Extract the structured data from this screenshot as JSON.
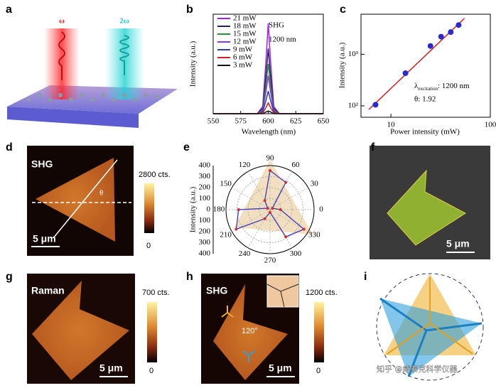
{
  "panel_labels": [
    "a",
    "b",
    "c",
    "d",
    "e",
    "f",
    "g",
    "h",
    "i"
  ],
  "panel_a": {
    "beam_1": "ω",
    "beam_2": "2ω"
  },
  "chart_data": [
    {
      "type": "line",
      "x_label": "Wavelength (nm)",
      "y_label": "Intensity (a.u.)",
      "annotations": [
        "SHG",
        "1200 nm"
      ],
      "x": [
        550,
        590,
        595,
        598,
        600,
        602,
        605,
        610,
        650
      ],
      "series": [
        {
          "name": "21 mW",
          "color": "#a020f0",
          "values": [
            0,
            0,
            0.08,
            0.6,
            1.0,
            0.6,
            0.08,
            0,
            0
          ]
        },
        {
          "name": "18 mW",
          "color": "#23235e",
          "values": [
            0,
            0,
            0.06,
            0.43,
            0.72,
            0.43,
            0.06,
            0,
            0
          ]
        },
        {
          "name": "15 mW",
          "color": "#2e8b3a",
          "values": [
            0,
            0,
            0.04,
            0.33,
            0.55,
            0.33,
            0.04,
            0,
            0
          ]
        },
        {
          "name": "12 mW",
          "color": "#8a3cc8",
          "values": [
            0,
            0,
            0.03,
            0.25,
            0.42,
            0.25,
            0.03,
            0,
            0
          ]
        },
        {
          "name": "9 mW",
          "color": "#2a3cc0",
          "values": [
            0,
            0,
            0.02,
            0.15,
            0.25,
            0.15,
            0.02,
            0,
            0
          ]
        },
        {
          "name": "6 mW",
          "color": "#d02020",
          "values": [
            0,
            0,
            0.01,
            0.07,
            0.12,
            0.07,
            0.01,
            0,
            0
          ]
        },
        {
          "name": "3 mW",
          "color": "#111111",
          "values": [
            0,
            0,
            0,
            0.02,
            0.03,
            0.02,
            0,
            0,
            0
          ]
        }
      ],
      "xlim": [
        550,
        650
      ],
      "xticks": [
        550,
        575,
        600,
        625,
        650
      ],
      "ylim": [
        0,
        1.1
      ]
    },
    {
      "type": "scatter",
      "x_label": "Power intensity (mW)",
      "y_label": "Intensity (a.u.)",
      "annotation_symbol": "λ",
      "annotation_sub": "excitation",
      "annotation_value": ":  1200 nm",
      "annotation_theta": "θ:  1.92",
      "x": [
        7,
        14,
        25,
        32,
        40,
        48
      ],
      "values": [
        105,
        430,
        1450,
        2200,
        2700,
        3700
      ],
      "color": "#2a2ad0",
      "fit_x": [
        6,
        55
      ],
      "fit_values": [
        85,
        5000
      ],
      "fit_color": "#d42020",
      "xlog": true,
      "ylog": true,
      "xlim": [
        5,
        100
      ],
      "xticks": [
        10,
        100
      ],
      "ylim": [
        60,
        6000
      ],
      "yticks": [
        {
          "value": 100,
          "label": "10²"
        },
        {
          "value": 1000,
          "label": "10³"
        }
      ]
    },
    {
      "type": "polar",
      "y_label": "Intensity (a.u.)",
      "angles": [
        0,
        30,
        60,
        90,
        120,
        150,
        180,
        210,
        240,
        270,
        300,
        330
      ],
      "values": [
        95,
        25,
        285,
        355,
        95,
        25,
        285,
        355,
        95,
        25,
        285,
        355
      ],
      "color": "#3a3ac0",
      "dot_color": "#d03030",
      "angle_ticks": [
        0,
        30,
        60,
        90,
        120,
        150,
        180,
        210,
        240,
        270,
        300,
        330
      ],
      "rlim": [
        0,
        400
      ],
      "rticks": [
        0,
        100,
        200,
        300,
        400
      ]
    }
  ],
  "panel_d": {
    "label": "SHG",
    "cbar_max": "2800 cts.",
    "cbar_min": "0",
    "scale": "5 μm",
    "angle": "θ"
  },
  "panel_f": {
    "scale": "5 μm"
  },
  "panel_g": {
    "label": "Raman",
    "cbar_max": "700 cts.",
    "cbar_min": "0",
    "scale": "5 μm"
  },
  "panel_h": {
    "label": "SHG",
    "cbar_max": "1200 cts.",
    "cbar_min": "0",
    "scale": "5 μm",
    "angle": "120°"
  },
  "watermark": "知乎 @威泰克科学仪器"
}
